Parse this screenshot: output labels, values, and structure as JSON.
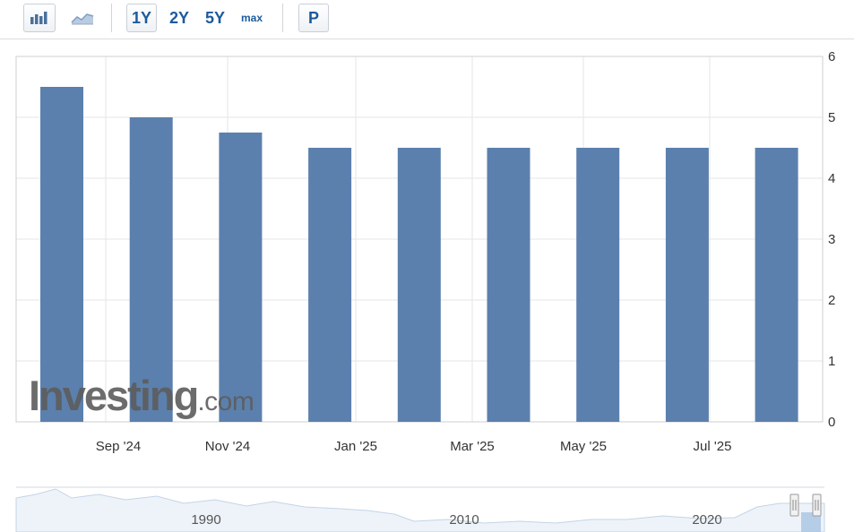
{
  "toolbar": {
    "bar_icon": "bar-chart-icon",
    "area_icon": "area-chart-icon",
    "range_buttons": [
      "1Y",
      "2Y",
      "5Y",
      "max"
    ],
    "print_label": "P",
    "accent_color": "#1d5a9c"
  },
  "watermark": {
    "main": "Investing",
    "suffix": ".com"
  },
  "chart_data": {
    "type": "bar",
    "bar_color": "#5b80ad",
    "x_tick_labels": [
      "Sep '24",
      "Nov '24",
      "Jan '25",
      "Mar '25",
      "May '25",
      "Jul '25"
    ],
    "values": [
      5.5,
      5.0,
      4.75,
      4.5,
      4.5,
      4.5,
      4.5,
      4.5,
      4.5
    ],
    "y_ticks": [
      0,
      1,
      2,
      3,
      4,
      5,
      6
    ],
    "ylim": [
      0,
      6
    ],
    "y_axis_side": "right",
    "grid": true
  },
  "navigator": {
    "year_labels": [
      "1990",
      "2010",
      "2020"
    ]
  }
}
